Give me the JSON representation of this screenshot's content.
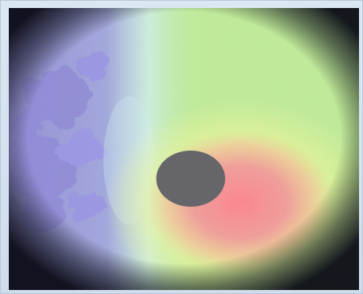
{
  "image": {
    "description_label": "",
    "colors": {
      "frame_bg": "#dbe7f2",
      "vignette": "#171827",
      "field_green": "#8ee06a",
      "field_yellow": "#e6f26a",
      "hot_red": "#f0606a",
      "cool_blue": "#6c63d9",
      "pale_cyan": "#b9e8f0",
      "dark_disk": "#1a1a20"
    }
  }
}
